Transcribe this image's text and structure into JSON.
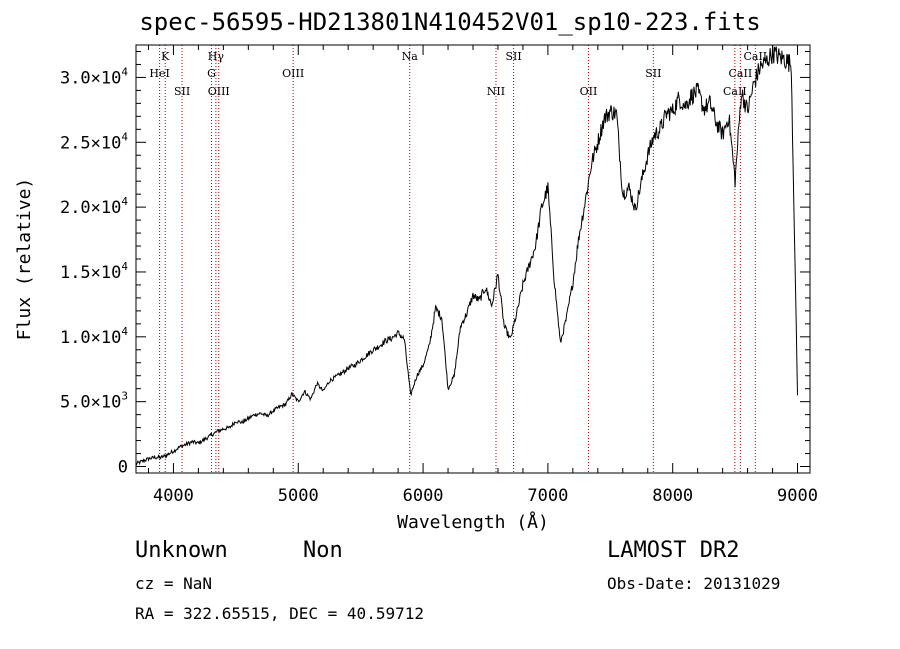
{
  "title": "spec-56595-HD213801N410452V01_sp10-223.fits",
  "info": {
    "class": "Unknown",
    "subclass": "Non",
    "survey": "LAMOST DR2",
    "cz": "cz = NaN",
    "obs_date": "Obs-Date: 20131029",
    "radec": "RA = 322.65515, DEC =  40.59712"
  },
  "chart_data": {
    "type": "line",
    "xlabel": "Wavelength (Å)",
    "ylabel": "Flux (relative)",
    "xlim": [
      3700,
      9100
    ],
    "ylim": [
      -500,
      32500
    ],
    "x_ticks": [
      4000,
      5000,
      6000,
      7000,
      8000,
      9000
    ],
    "y_ticks": [
      {
        "value": 0,
        "label": "0"
      },
      {
        "value": 5000,
        "label": "5.0×10",
        "exp": "3"
      },
      {
        "value": 10000,
        "label": "1.0×10",
        "exp": "4"
      },
      {
        "value": 15000,
        "label": "1.5×10",
        "exp": "4"
      },
      {
        "value": 20000,
        "label": "2.0×10",
        "exp": "4"
      },
      {
        "value": 25000,
        "label": "2.5×10",
        "exp": "4"
      },
      {
        "value": 30000,
        "label": "3.0×10",
        "exp": "4"
      }
    ],
    "series": [
      {
        "line_color": "#000000",
        "x": [
          3700,
          3750,
          3800,
          3850,
          3900,
          3950,
          4000,
          4050,
          4100,
          4150,
          4200,
          4250,
          4300,
          4350,
          4400,
          4450,
          4500,
          4550,
          4600,
          4650,
          4700,
          4750,
          4800,
          4850,
          4900,
          4950,
          5000,
          5050,
          5100,
          5150,
          5200,
          5250,
          5300,
          5350,
          5400,
          5450,
          5500,
          5550,
          5600,
          5650,
          5700,
          5750,
          5800,
          5850,
          5900,
          5950,
          6000,
          6050,
          6100,
          6150,
          6200,
          6250,
          6300,
          6350,
          6400,
          6450,
          6500,
          6550,
          6600,
          6650,
          6700,
          6750,
          6800,
          6850,
          6900,
          6950,
          7000,
          7050,
          7100,
          7150,
          7200,
          7250,
          7300,
          7350,
          7400,
          7450,
          7500,
          7550,
          7600,
          7650,
          7700,
          7750,
          7800,
          7850,
          7900,
          7950,
          8000,
          8050,
          8100,
          8150,
          8200,
          8250,
          8300,
          8350,
          8400,
          8450,
          8500,
          8550,
          8600,
          8650,
          8700,
          8750,
          8800,
          8850,
          8900,
          8950,
          9000
        ],
        "y": [
          200,
          400,
          600,
          700,
          700,
          900,
          1200,
          1500,
          1700,
          1900,
          1800,
          2100,
          2400,
          2700,
          2900,
          3000,
          3500,
          3400,
          3700,
          4000,
          4100,
          3900,
          4300,
          4600,
          4800,
          5600,
          5000,
          5800,
          5200,
          6400,
          5800,
          6600,
          6900,
          7200,
          7600,
          7800,
          8200,
          8600,
          9000,
          9300,
          9700,
          9900,
          10300,
          9800,
          5500,
          7000,
          7800,
          9300,
          12200,
          11500,
          6000,
          7000,
          10800,
          11800,
          13200,
          12800,
          13800,
          12400,
          14800,
          10800,
          9800,
          11800,
          14000,
          15500,
          17000,
          20000,
          21500,
          14500,
          9500,
          11500,
          14200,
          17800,
          20500,
          23400,
          25000,
          26800,
          27400,
          27200,
          21000,
          21500,
          19800,
          22000,
          24000,
          25500,
          26000,
          27200,
          27400,
          28400,
          27800,
          28600,
          28900,
          27600,
          28000,
          26500,
          25600,
          27000,
          22000,
          28900,
          27400,
          29500,
          30800,
          31200,
          31900,
          31600,
          31400,
          31000,
          5500
        ]
      }
    ],
    "line_annotations": [
      {
        "label": "K",
        "x": 3934,
        "row": 0
      },
      {
        "label": "HeI",
        "x": 3889,
        "row": 1
      },
      {
        "label": "SII",
        "x": 4069,
        "row": 2
      },
      {
        "label": "Hγ",
        "x": 4340,
        "row": 0
      },
      {
        "label": "G",
        "x": 4305,
        "row": 1
      },
      {
        "label": "OIII",
        "x": 4363,
        "row": 2
      },
      {
        "label": "OIII",
        "x": 4959,
        "row": 1
      },
      {
        "label": "Na",
        "x": 5893,
        "row": 0
      },
      {
        "label": "NII",
        "x": 6584,
        "row": 2
      },
      {
        "label": "SII",
        "x": 6725,
        "row": 0
      },
      {
        "label": "OII",
        "x": 7325,
        "row": 2
      },
      {
        "label": "SII",
        "x": 7845,
        "row": 1
      },
      {
        "label": "CaII",
        "x": 8498,
        "row": 2
      },
      {
        "label": "CaII",
        "x": 8542,
        "row": 1
      },
      {
        "label": "CaII",
        "x": 8662,
        "row": 0
      }
    ],
    "annotation_line_color": "#b00000",
    "grid": false
  }
}
